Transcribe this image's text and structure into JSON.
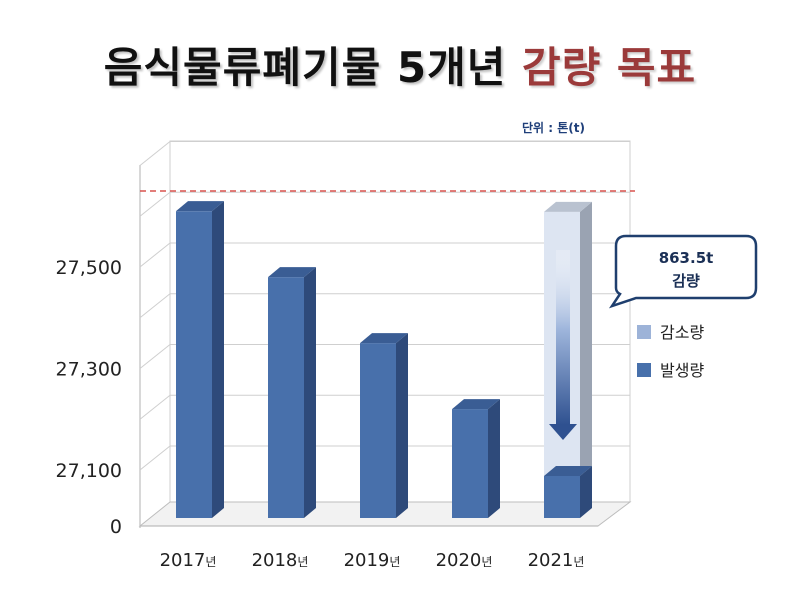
{
  "page_title": {
    "main": "음식물류폐기물 5개년",
    "accent": "감량 목표"
  },
  "unit_label": "단위 : 톤(t)",
  "callout": {
    "value": "863.5t",
    "label": "감량"
  },
  "colors": {
    "accent_title": "#9b3a3a",
    "bar_front": "#4870ab",
    "bar_side": "#2e4a7a",
    "bar_top": "#3a5d94",
    "reduction_bar": "#dde5f2",
    "target_line": "#d9534f",
    "callout_border": "#1f3f6e"
  },
  "chart_data": {
    "type": "bar",
    "categories": [
      "2017",
      "2018",
      "2019",
      "2020",
      "2021"
    ],
    "category_suffix": "년",
    "series": [
      {
        "name": "발생량",
        "values": [
          27610,
          27480,
          27350,
          27220,
          26745
        ]
      },
      {
        "name": "감소량",
        "values": [
          0,
          0,
          0,
          0,
          863.5
        ]
      }
    ],
    "y_ticks": [
      {
        "value": 27100,
        "label": "27,100"
      },
      {
        "value": 27300,
        "label": "27,300"
      },
      {
        "value": 27500,
        "label": "27,500"
      }
    ],
    "y_zero_label": "0",
    "axis_break": true,
    "target_line": true,
    "legend": [
      "감소량",
      "발생량"
    ],
    "legend_position": "right",
    "grid": true
  }
}
